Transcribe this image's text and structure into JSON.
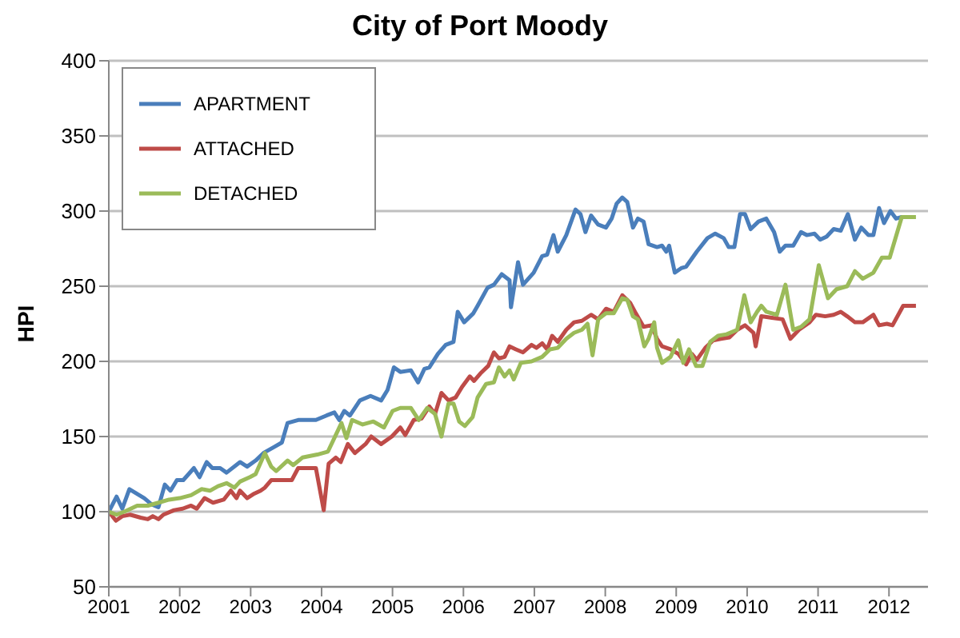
{
  "chart_data": {
    "type": "line",
    "title": "City of Port Moody",
    "ylabel": "HPI",
    "xlim": [
      2001,
      2012.55
    ],
    "xticks": [
      2001,
      2002,
      2003,
      2004,
      2005,
      2006,
      2007,
      2008,
      2009,
      2010,
      2011,
      2012
    ],
    "ylim": [
      50,
      400
    ],
    "yticks": [
      50,
      100,
      150,
      200,
      250,
      300,
      350,
      400
    ],
    "grid": "y",
    "legend": "top left",
    "marker": "none",
    "line_style": "solid",
    "series": [
      {
        "name": "APARTMENT",
        "color": "#4a7ebb",
        "x": [
          2001,
          2001.11,
          2001.19,
          2001.29,
          2001.5,
          2001.6,
          2001.7,
          2001.79,
          2001.87,
          2001.96,
          2002.05,
          2002.2,
          2002.28,
          2002.38,
          2002.46,
          2002.57,
          2002.66,
          2002.85,
          2002.95,
          2003.07,
          2003.18,
          2003.33,
          2003.44,
          2003.52,
          2003.67,
          2003.92,
          2004.07,
          2004.18,
          2004.25,
          2004.32,
          2004.4,
          2004.54,
          2004.69,
          2004.84,
          2004.93,
          2005.02,
          2005.11,
          2005.26,
          2005.36,
          2005.45,
          2005.52,
          2005.64,
          2005.75,
          2005.86,
          2005.92,
          2006.01,
          2006.14,
          2006.2,
          2006.34,
          2006.43,
          2006.54,
          2006.65,
          2006.67,
          2006.77,
          2006.84,
          2006.99,
          2007.11,
          2007.18,
          2007.27,
          2007.33,
          2007.45,
          2007.58,
          2007.65,
          2007.72,
          2007.8,
          2007.9,
          2008.01,
          2008.09,
          2008.16,
          2008.24,
          2008.31,
          2008.39,
          2008.46,
          2008.54,
          2008.61,
          2008.73,
          2008.8,
          2008.86,
          2008.9,
          2008.98,
          2009.07,
          2009.14,
          2009.29,
          2009.44,
          2009.55,
          2009.67,
          2009.74,
          2009.82,
          2009.9,
          2009.97,
          2010.05,
          2010.16,
          2010.27,
          2010.38,
          2010.46,
          2010.54,
          2010.65,
          2010.76,
          2010.84,
          2010.95,
          2011.03,
          2011.12,
          2011.22,
          2011.32,
          2011.42,
          2011.52,
          2011.61,
          2011.71,
          2011.78,
          2011.86,
          2011.93,
          2012.02,
          2012.1,
          2012.17,
          2012.3
        ],
        "values": [
          100,
          110,
          102,
          115,
          109,
          105,
          103,
          118,
          114,
          121,
          121,
          129,
          123,
          133,
          129,
          129,
          126,
          133,
          130,
          134,
          139,
          143,
          146,
          159,
          161,
          161,
          164,
          166,
          161,
          167,
          164,
          174,
          177,
          174,
          181,
          196,
          193,
          194,
          186,
          195,
          196,
          205,
          211,
          213,
          233,
          226,
          232,
          237,
          249,
          251,
          258,
          254,
          236,
          266,
          251,
          259,
          270,
          271,
          284,
          273,
          284,
          301,
          298,
          286,
          297,
          291,
          289,
          295,
          305,
          309,
          306,
          289,
          295,
          293,
          278,
          276,
          277,
          273,
          277,
          259,
          262,
          263,
          273,
          282,
          285,
          282,
          276,
          276,
          298,
          298,
          288,
          293,
          295,
          286,
          273,
          277,
          277,
          286,
          284,
          285,
          281,
          283,
          288,
          287,
          298,
          281,
          289,
          284,
          284,
          302,
          292,
          300,
          295,
          296,
          296
        ]
      },
      {
        "name": "ATTACHED",
        "color": "#be4b48",
        "x": [
          2001,
          2001.1,
          2001.19,
          2001.3,
          2001.45,
          2001.55,
          2001.62,
          2001.7,
          2001.77,
          2001.92,
          2002.04,
          2002.16,
          2002.24,
          2002.35,
          2002.47,
          2002.62,
          2002.72,
          2002.8,
          2002.85,
          2002.95,
          2003.05,
          2003.14,
          2003.2,
          2003.29,
          2003.44,
          2003.58,
          2003.67,
          2003.92,
          2004.03,
          2004.1,
          2004.2,
          2004.27,
          2004.37,
          2004.47,
          2004.62,
          2004.7,
          2004.84,
          2004.99,
          2005.11,
          2005.18,
          2005.3,
          2005.41,
          2005.52,
          2005.6,
          2005.69,
          2005.79,
          2005.89,
          2005.98,
          2006.09,
          2006.15,
          2006.24,
          2006.35,
          2006.43,
          2006.5,
          2006.58,
          2006.65,
          2006.74,
          2006.84,
          2006.96,
          2007.03,
          2007.11,
          2007.18,
          2007.25,
          2007.33,
          2007.45,
          2007.56,
          2007.67,
          2007.8,
          2007.9,
          2008.01,
          2008.12,
          2008.24,
          2008.35,
          2008.43,
          2008.54,
          2008.65,
          2008.73,
          2008.8,
          2008.92,
          2009.03,
          2009.14,
          2009.22,
          2009.29,
          2009.41,
          2009.52,
          2009.63,
          2009.75,
          2009.86,
          2009.97,
          2010.09,
          2010.12,
          2010.2,
          2010.35,
          2010.5,
          2010.61,
          2010.73,
          2010.88,
          2010.97,
          2011.1,
          2011.22,
          2011.32,
          2011.41,
          2011.52,
          2011.63,
          2011.78,
          2011.86,
          2011.97,
          2012.05,
          2012.2,
          2012.38
        ],
        "values": [
          100,
          94,
          97,
          98,
          96,
          95,
          97,
          95,
          98,
          101,
          102,
          104,
          102,
          109,
          106,
          108,
          114,
          109,
          114,
          109,
          112,
          114,
          116,
          121,
          121,
          121,
          129,
          129,
          101,
          132,
          136,
          133,
          145,
          139,
          145,
          150,
          145,
          150,
          156,
          151,
          161,
          162,
          170,
          165,
          179,
          174,
          176,
          183,
          190,
          187,
          192,
          197,
          206,
          202,
          203,
          210,
          208,
          206,
          211,
          209,
          212,
          208,
          217,
          213,
          221,
          226,
          227,
          231,
          228,
          235,
          233,
          244,
          239,
          232,
          223,
          224,
          215,
          210,
          208,
          205,
          198,
          205,
          201,
          209,
          214,
          215,
          216,
          221,
          224,
          219,
          210,
          230,
          229,
          228,
          215,
          221,
          226,
          231,
          230,
          231,
          233,
          230,
          226,
          226,
          231,
          224,
          225,
          224,
          237,
          237
        ]
      },
      {
        "name": "DETACHED",
        "color": "#9bbb59",
        "x": [
          2001,
          2001.11,
          2001.22,
          2001.4,
          2001.55,
          2001.7,
          2001.85,
          2002,
          2002.16,
          2002.31,
          2002.43,
          2002.54,
          2002.66,
          2002.77,
          2002.85,
          2002.99,
          2003.07,
          2003.2,
          2003.29,
          2003.36,
          2003.52,
          2003.6,
          2003.73,
          2003.94,
          2004.09,
          2004.28,
          2004.35,
          2004.43,
          2004.58,
          2004.73,
          2004.88,
          2005,
          2005.11,
          2005.26,
          2005.37,
          2005.49,
          2005.6,
          2005.69,
          2005.79,
          2005.86,
          2005.94,
          2006.02,
          2006.13,
          2006.2,
          2006.32,
          2006.43,
          2006.5,
          2006.58,
          2006.65,
          2006.71,
          2006.81,
          2006.96,
          2007.11,
          2007.22,
          2007.33,
          2007.45,
          2007.56,
          2007.67,
          2007.75,
          2007.82,
          2007.9,
          2008.01,
          2008.12,
          2008.24,
          2008.31,
          2008.39,
          2008.46,
          2008.55,
          2008.61,
          2008.69,
          2008.73,
          2008.8,
          2008.92,
          2009.03,
          2009.1,
          2009.18,
          2009.28,
          2009.37,
          2009.48,
          2009.59,
          2009.71,
          2009.86,
          2009.96,
          2010.05,
          2010.14,
          2010.2,
          2010.27,
          2010.42,
          2010.54,
          2010.65,
          2010.76,
          2010.88,
          2011.01,
          2011.14,
          2011.26,
          2011.41,
          2011.52,
          2011.63,
          2011.78,
          2011.9,
          2012.01,
          2012.18,
          2012.38
        ],
        "values": [
          100,
          98,
          100,
          104,
          104,
          106,
          108,
          109,
          111,
          115,
          114,
          117,
          119,
          116,
          120,
          123,
          125,
          139,
          130,
          127,
          134,
          131,
          136,
          138,
          140,
          159,
          149,
          161,
          158,
          160,
          156,
          167,
          169,
          169,
          161,
          169,
          165,
          150,
          172,
          172,
          160,
          157,
          163,
          176,
          185,
          186,
          196,
          190,
          194,
          188,
          199,
          200,
          203,
          208,
          209,
          215,
          219,
          221,
          225,
          204,
          228,
          232,
          232,
          242,
          241,
          230,
          228,
          210,
          215,
          226,
          209,
          199,
          203,
          214,
          199,
          208,
          197,
          197,
          213,
          217,
          218,
          221,
          244,
          226,
          233,
          237,
          233,
          231,
          251,
          221,
          223,
          228,
          264,
          242,
          248,
          250,
          260,
          255,
          259,
          269,
          269,
          296,
          296
        ]
      }
    ]
  }
}
